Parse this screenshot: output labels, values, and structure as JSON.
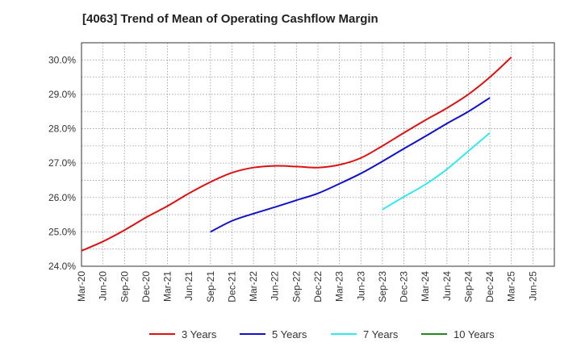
{
  "chart_data": {
    "type": "line",
    "title": "[4063]  Trend of Mean of Operating Cashflow Margin",
    "xlabel": "",
    "ylabel": "",
    "x_ticks": [
      "Mar-20",
      "Jun-20",
      "Sep-20",
      "Dec-20",
      "Mar-21",
      "Jun-21",
      "Sep-21",
      "Dec-21",
      "Mar-22",
      "Jun-22",
      "Sep-22",
      "Dec-22",
      "Mar-23",
      "Jun-23",
      "Sep-23",
      "Dec-23",
      "Mar-24",
      "Jun-24",
      "Sep-24",
      "Dec-24",
      "Mar-25",
      "Jun-25"
    ],
    "y_ticks": [
      "24.0%",
      "25.0%",
      "26.0%",
      "27.0%",
      "28.0%",
      "29.0%",
      "30.0%"
    ],
    "ylim": [
      24.0,
      30.5
    ],
    "grid": true,
    "legend_position": "bottom",
    "series": [
      {
        "name": "3 Years",
        "color": "#dd1111",
        "start_index": 0,
        "values": [
          24.45,
          24.72,
          25.05,
          25.42,
          25.75,
          26.12,
          26.45,
          26.72,
          26.87,
          26.92,
          26.9,
          26.87,
          26.95,
          27.15,
          27.5,
          27.88,
          28.25,
          28.6,
          29.0,
          29.5,
          30.08
        ]
      },
      {
        "name": "5 Years",
        "color": "#1111cc",
        "start_index": 6,
        "values": [
          25.0,
          25.32,
          25.53,
          25.72,
          25.92,
          26.12,
          26.4,
          26.7,
          27.05,
          27.42,
          27.78,
          28.15,
          28.5,
          28.9
        ]
      },
      {
        "name": "7 Years",
        "color": "#33e8ee",
        "start_index": 14,
        "values": [
          25.65,
          26.02,
          26.38,
          26.82,
          27.35,
          27.88
        ]
      },
      {
        "name": "10 Years",
        "color": "#228822",
        "start_index": null,
        "values": []
      }
    ]
  }
}
